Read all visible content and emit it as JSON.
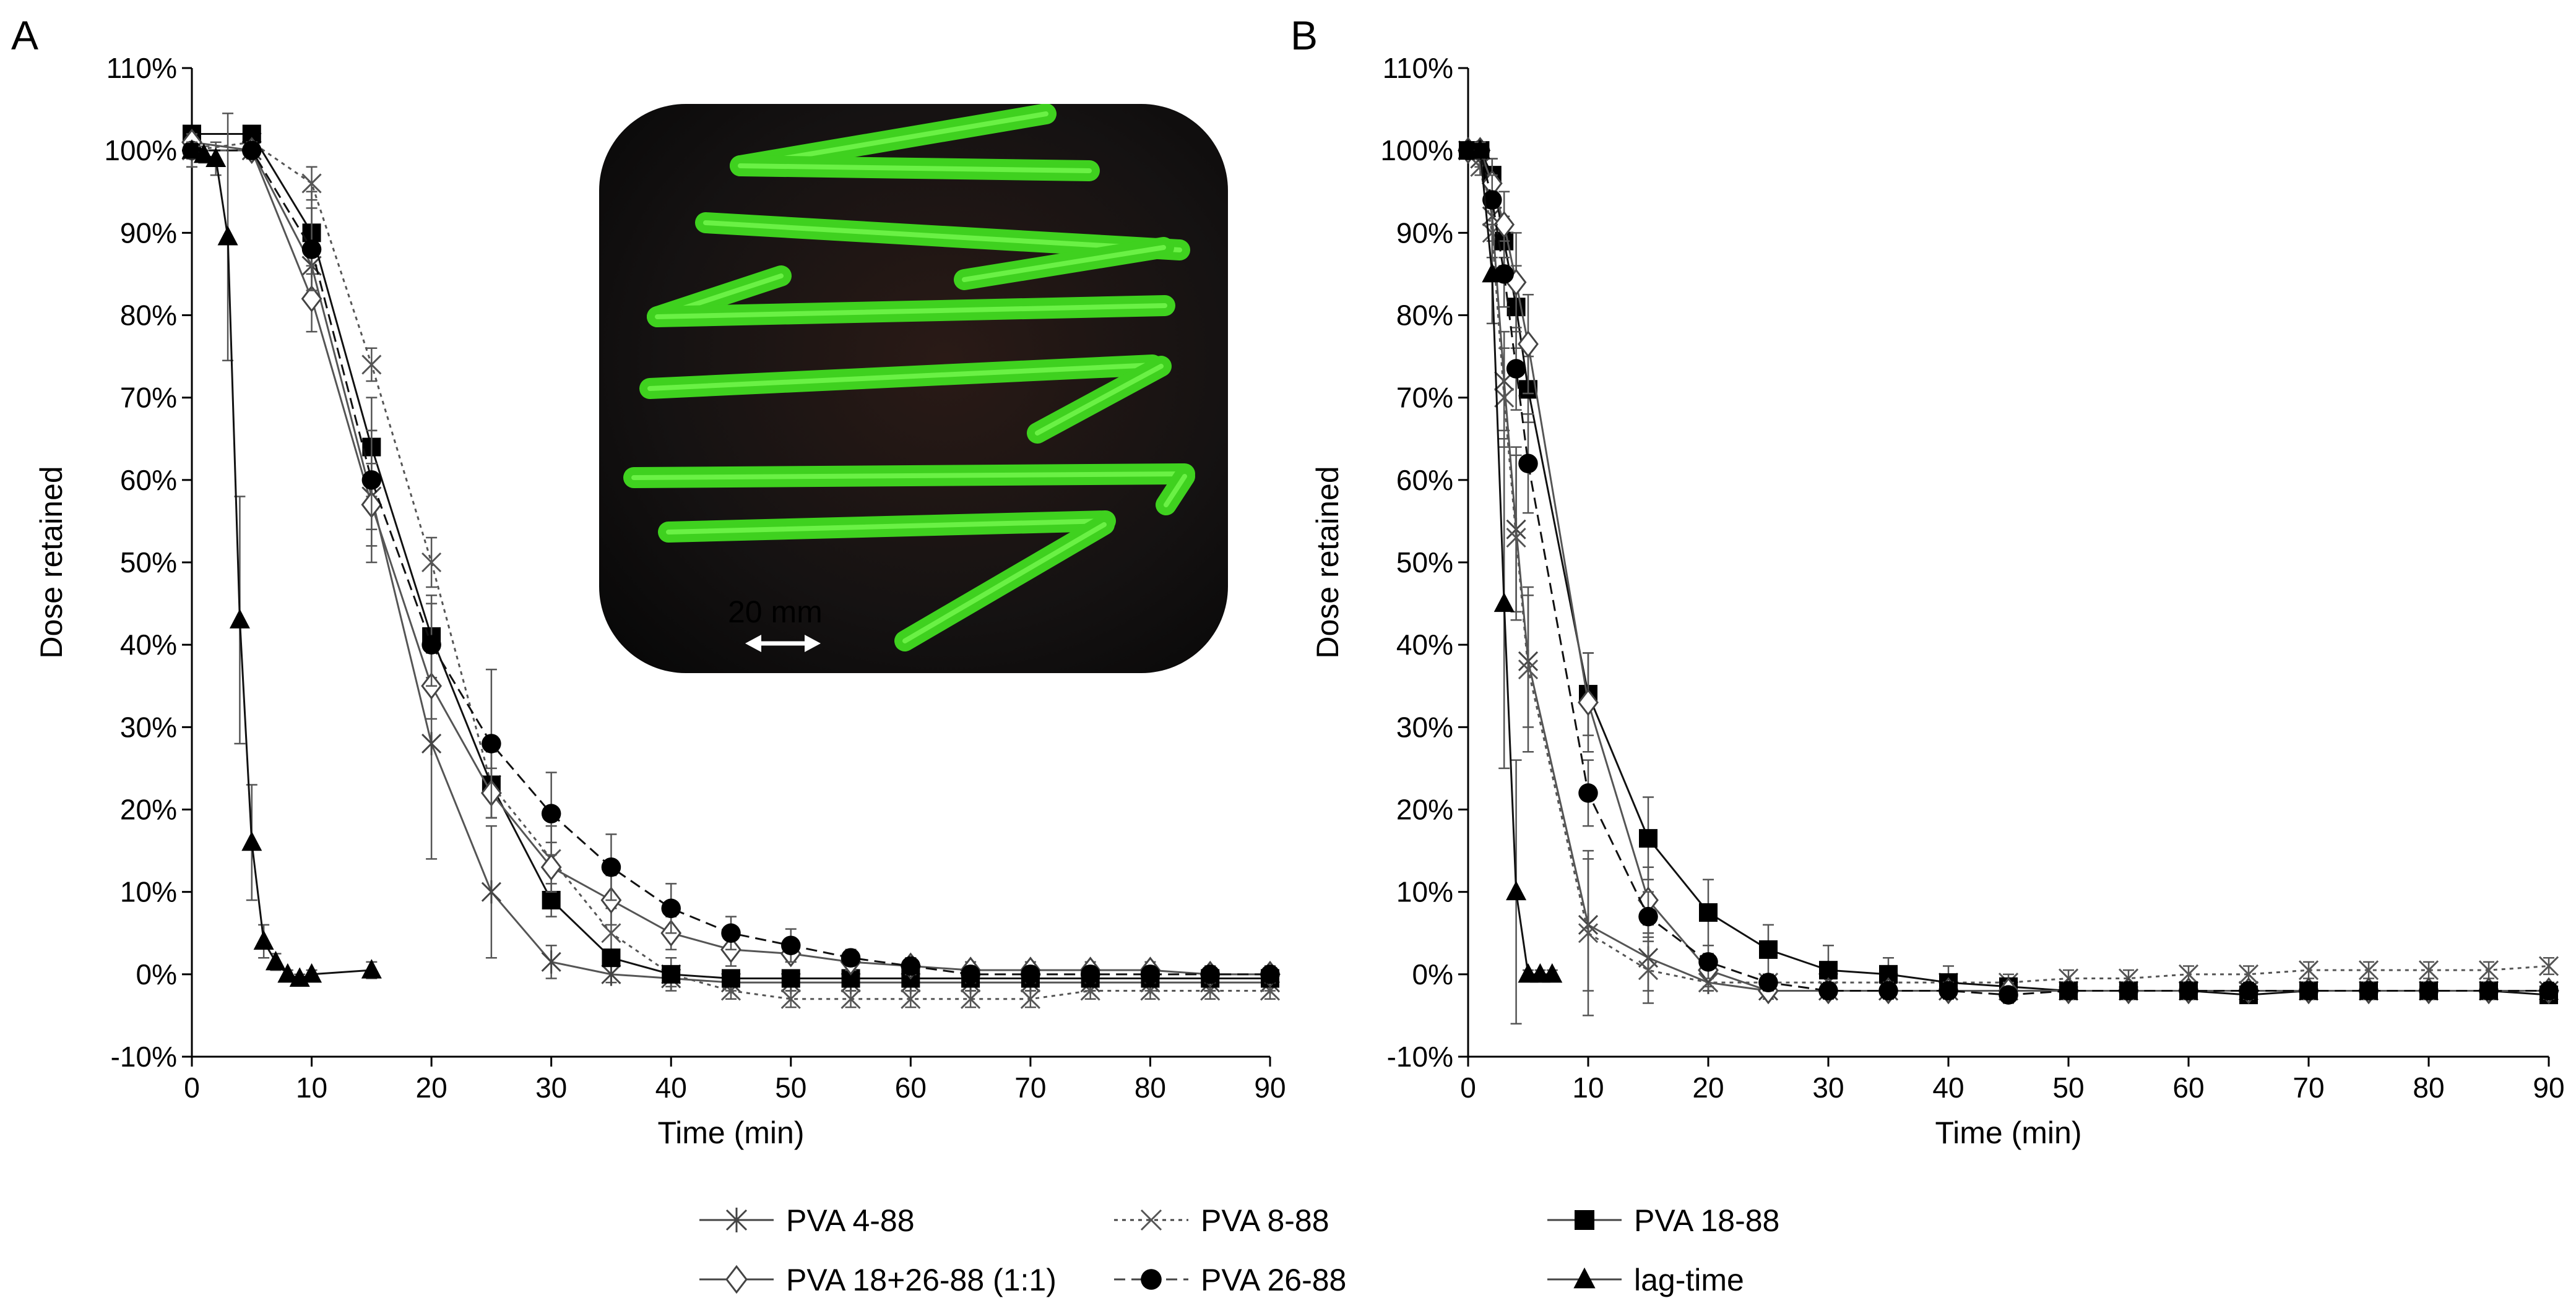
{
  "figure": {
    "panel_labels": [
      "A",
      "B"
    ],
    "photo": {
      "scale_label": "20 mm",
      "colors": {
        "background": "#121212",
        "strip": "#3fd11f",
        "strip_highlight": "#7dff56"
      }
    },
    "legend": [
      "PVA 4-88",
      "PVA 8-88",
      "PVA 18-88",
      "PVA 18+26-88 (1:1)",
      "PVA 26-88",
      "lag-time"
    ]
  },
  "chart_data": [
    {
      "panel": "A",
      "type": "line",
      "xlabel": "Time (min)",
      "ylabel": "Dose retained",
      "xlim": [
        0,
        90
      ],
      "ylim": [
        -10,
        110
      ],
      "xticks": [
        "0",
        "10",
        "20",
        "30",
        "40",
        "50",
        "60",
        "70",
        "80",
        "90"
      ],
      "yticks": [
        "-10%",
        "0%",
        "10%",
        "20%",
        "30%",
        "40%",
        "50%",
        "60%",
        "70%",
        "80%",
        "90%",
        "100%",
        "110%"
      ],
      "grid": false,
      "legend_position": "bottom",
      "series": [
        {
          "name": "PVA 4-88",
          "marker": "asterisk",
          "dash": "solid",
          "x": [
            0,
            5,
            10,
            15,
            20,
            25,
            30,
            35,
            40,
            45,
            50,
            55,
            60,
            65,
            70,
            75,
            80,
            85,
            90
          ],
          "y": [
            100,
            100,
            86,
            58,
            28,
            10,
            1.5,
            0,
            -0.5,
            -1,
            -1,
            -1,
            -1,
            -1,
            -1,
            -1,
            -1,
            -1,
            -1
          ],
          "err": [
            2,
            1,
            4,
            8,
            14,
            8,
            2,
            1,
            1,
            1,
            1,
            1,
            1,
            1,
            1,
            1,
            1,
            1,
            1
          ]
        },
        {
          "name": "PVA 8-88",
          "marker": "x",
          "dash": "dotted",
          "x": [
            0,
            5,
            10,
            15,
            20,
            25,
            30,
            35,
            40,
            45,
            50,
            55,
            60,
            65,
            70,
            75,
            80,
            85,
            90
          ],
          "y": [
            100,
            101,
            96,
            74,
            50,
            23,
            14,
            5,
            0,
            -2,
            -3,
            -3,
            -3,
            -3,
            -3,
            -2,
            -2,
            -2,
            -2
          ],
          "err": [
            1,
            1,
            2,
            2,
            3,
            4,
            4,
            3,
            2,
            1,
            1,
            1,
            1,
            1,
            1,
            1,
            1,
            1,
            1
          ]
        },
        {
          "name": "PVA 18-88",
          "marker": "square",
          "dash": "solid",
          "x": [
            0,
            5,
            10,
            15,
            20,
            25,
            30,
            35,
            40,
            45,
            50,
            55,
            60,
            65,
            70,
            75,
            80,
            85,
            90
          ],
          "y": [
            102,
            102,
            90,
            64,
            41,
            23,
            9,
            2,
            0,
            -0.5,
            -0.5,
            -0.5,
            -0.5,
            -0.5,
            -0.5,
            -0.5,
            -0.5,
            -0.5,
            -0.5
          ],
          "err": [
            1,
            1,
            5,
            6,
            5,
            4,
            2,
            1,
            1,
            1,
            1,
            1,
            1,
            1,
            1,
            1,
            1,
            1,
            1
          ]
        },
        {
          "name": "PVA 18+26-88 (1:1)",
          "marker": "diamond",
          "dash": "solid",
          "x": [
            0,
            5,
            10,
            15,
            20,
            25,
            30,
            35,
            40,
            45,
            50,
            55,
            60,
            65,
            70,
            75,
            80,
            85,
            90
          ],
          "y": [
            101,
            100,
            82,
            57,
            35,
            22,
            13,
            9,
            5,
            3,
            2.5,
            1.5,
            1,
            0.5,
            0.5,
            0.5,
            0.5,
            0,
            0
          ],
          "err": [
            1,
            1,
            4,
            5,
            4,
            3,
            3,
            3,
            2,
            2,
            1,
            1,
            1,
            1,
            1,
            1,
            1,
            1,
            1
          ]
        },
        {
          "name": "PVA 26-88",
          "marker": "circle",
          "dash": "dashed",
          "x": [
            0,
            5,
            10,
            15,
            20,
            25,
            30,
            35,
            40,
            45,
            50,
            55,
            60,
            65,
            70,
            75,
            80,
            85,
            90
          ],
          "y": [
            100,
            100,
            88,
            60,
            40,
            28,
            19.5,
            13,
            8,
            5,
            3.5,
            2,
            1,
            0,
            0,
            0,
            0,
            0,
            0
          ],
          "err": [
            1,
            1,
            5,
            6,
            5,
            9,
            5,
            4,
            3,
            2,
            2,
            1,
            1,
            1,
            1,
            1,
            1,
            1,
            1
          ]
        },
        {
          "name": "lag-time",
          "marker": "triangle",
          "dash": "solid",
          "x": [
            0,
            1,
            2,
            3,
            4,
            5,
            6,
            7,
            8,
            9,
            10,
            15
          ],
          "y": [
            100,
            99.5,
            99,
            89.5,
            43,
            16,
            4,
            1.5,
            0,
            -0.5,
            0,
            0.5
          ],
          "err": [
            1,
            1,
            2,
            15,
            15,
            7,
            2,
            1,
            0.5,
            0.5,
            0.5,
            1
          ]
        }
      ]
    },
    {
      "panel": "B",
      "type": "line",
      "xlabel": "Time (min)",
      "ylabel": "Dose retained",
      "xlim": [
        0,
        90
      ],
      "ylim": [
        -10,
        110
      ],
      "xticks": [
        "0",
        "10",
        "20",
        "30",
        "40",
        "50",
        "60",
        "70",
        "80",
        "90"
      ],
      "yticks": [
        "-10%",
        "0%",
        "10%",
        "20%",
        "30%",
        "40%",
        "50%",
        "60%",
        "70%",
        "80%",
        "90%",
        "100%",
        "110%"
      ],
      "grid": false,
      "legend_position": "bottom",
      "series": [
        {
          "name": "PVA 4-88",
          "marker": "asterisk",
          "dash": "solid",
          "x": [
            0,
            1,
            2,
            3,
            4,
            5,
            10,
            15,
            20,
            25,
            30,
            35,
            40,
            45,
            50,
            55,
            60,
            65,
            70,
            75,
            80,
            85,
            90
          ],
          "y": [
            100,
            99,
            92,
            72,
            54,
            38,
            6,
            2,
            -1,
            -2,
            -2,
            -2,
            -2,
            -2,
            -2,
            -2,
            -2,
            -2,
            -2,
            -2,
            -2,
            -2,
            -2
          ],
          "err": [
            0,
            1,
            3,
            6,
            10,
            8,
            8,
            4,
            1,
            1,
            1,
            1,
            1,
            1,
            1,
            1,
            1,
            1,
            1,
            1,
            1,
            1,
            1
          ]
        },
        {
          "name": "PVA 8-88",
          "marker": "x",
          "dash": "dotted",
          "x": [
            0,
            1,
            2,
            3,
            4,
            5,
            10,
            15,
            20,
            25,
            30,
            35,
            40,
            45,
            50,
            55,
            60,
            65,
            70,
            75,
            80,
            85,
            90
          ],
          "y": [
            100,
            98,
            90,
            70,
            53,
            37,
            5,
            0.5,
            -1,
            -1,
            -1,
            -1,
            -1,
            -1,
            -0.5,
            -0.5,
            0,
            0,
            0.5,
            0.5,
            0.5,
            0.5,
            1
          ],
          "err": [
            0,
            1,
            3,
            6,
            10,
            10,
            10,
            4,
            1,
            1,
            1,
            1,
            1,
            1,
            1,
            1,
            1,
            1,
            1,
            1,
            1,
            1,
            1
          ]
        },
        {
          "name": "PVA 18-88",
          "marker": "square",
          "dash": "solid",
          "x": [
            0,
            1,
            2,
            3,
            4,
            5,
            10,
            15,
            20,
            25,
            30,
            35,
            40,
            45,
            50,
            55,
            60,
            65,
            70,
            75,
            80,
            85,
            90
          ],
          "y": [
            100,
            100,
            97,
            89,
            81,
            71,
            34,
            16.5,
            7.5,
            3,
            0.5,
            0,
            -1,
            -1.5,
            -2,
            -2,
            -2,
            -2.5,
            -2,
            -2,
            -2,
            -2,
            -2.5
          ],
          "err": [
            0,
            1,
            2,
            3,
            5,
            4,
            5,
            5,
            4,
            3,
            3,
            2,
            2,
            1,
            1,
            1,
            1,
            1,
            1,
            1,
            1,
            1,
            1
          ]
        },
        {
          "name": "PVA 18+26-88 (1:1)",
          "marker": "diamond",
          "dash": "solid",
          "x": [
            0,
            1,
            2,
            3,
            4,
            5,
            10,
            15,
            20,
            25,
            30,
            35,
            40,
            45,
            50,
            55,
            60,
            65,
            70,
            75,
            80,
            85,
            90
          ],
          "y": [
            100,
            100,
            96,
            91,
            84,
            76.5,
            33,
            9,
            0.5,
            -2,
            -2,
            -2,
            -2,
            -2,
            -2,
            -2,
            -2,
            -2,
            -2,
            -2,
            -2,
            -2,
            -2
          ],
          "err": [
            0,
            1,
            3,
            4,
            6,
            6,
            6,
            4,
            2,
            1,
            1,
            1,
            1,
            1,
            1,
            1,
            1,
            1,
            1,
            1,
            1,
            1,
            1
          ]
        },
        {
          "name": "PVA 26-88",
          "marker": "circle",
          "dash": "dashed",
          "x": [
            0,
            1,
            2,
            3,
            4,
            5,
            10,
            15,
            20,
            25,
            30,
            35,
            40,
            45,
            50,
            55,
            60,
            65,
            70,
            75,
            80,
            85,
            90
          ],
          "y": [
            100,
            100,
            94,
            85,
            73.5,
            62,
            22,
            7,
            1.5,
            -1,
            -2,
            -2,
            -2,
            -2.5,
            -2,
            -2,
            -2,
            -2,
            -2,
            -2,
            -2,
            -2,
            -2
          ],
          "err": [
            0,
            1,
            3,
            4,
            5,
            6,
            4,
            3,
            2,
            1,
            1,
            1,
            1,
            1,
            1,
            1,
            1,
            1,
            1,
            1,
            1,
            1,
            1
          ]
        },
        {
          "name": "lag-time",
          "marker": "triangle",
          "dash": "solid",
          "x": [
            0,
            1,
            2,
            3,
            4,
            5,
            6,
            7
          ],
          "y": [
            100,
            100,
            85,
            45,
            10,
            0,
            0,
            0
          ],
          "err": [
            0,
            1,
            6,
            20,
            16,
            0.5,
            0.5,
            0.5
          ]
        }
      ]
    }
  ]
}
